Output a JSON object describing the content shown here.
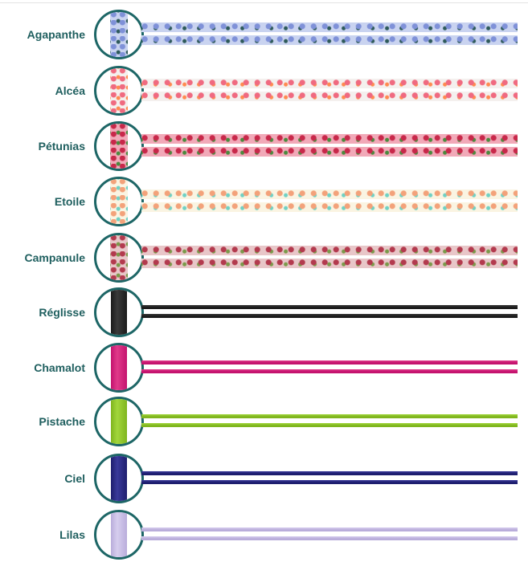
{
  "products": [
    {
      "name": "Agapanthe",
      "type": "liberty",
      "colors": [
        "#c9d3f0",
        "#7f91d8",
        "#2e5a5a"
      ]
    },
    {
      "name": "Alcéa",
      "type": "liberty",
      "colors": [
        "#f4f0ee",
        "#f06a80",
        "#ff8a50"
      ]
    },
    {
      "name": "Pétunias",
      "type": "liberty",
      "colors": [
        "#f1a9b8",
        "#c8284a",
        "#4a8a3e"
      ]
    },
    {
      "name": "Etoile",
      "type": "liberty",
      "colors": [
        "#faf4e2",
        "#f3a27a",
        "#6fd1c4"
      ]
    },
    {
      "name": "Campanule",
      "type": "liberty",
      "colors": [
        "#e8c6c8",
        "#b33a4e",
        "#7a9a4a"
      ]
    },
    {
      "name": "Réglisse",
      "type": "cord",
      "colors": [
        "#1b1b1b",
        "#3a3a3a"
      ]
    },
    {
      "name": "Chamalot",
      "type": "cord",
      "colors": [
        "#c4136e",
        "#e03a8a"
      ]
    },
    {
      "name": "Pistache",
      "type": "cord",
      "colors": [
        "#7fb51e",
        "#a2d63c"
      ]
    },
    {
      "name": "Ciel",
      "type": "cord",
      "colors": [
        "#1e1e6e",
        "#3a3a9a"
      ]
    },
    {
      "name": "Lilas",
      "type": "cord",
      "colors": [
        "#b9addb",
        "#d6cdee"
      ]
    }
  ],
  "accent": "#1d6666"
}
